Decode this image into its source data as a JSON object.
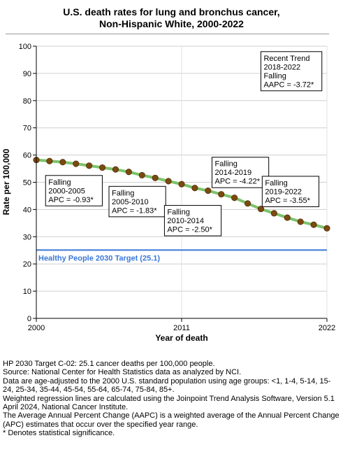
{
  "chart_data": {
    "type": "line",
    "title_lines": [
      "U.S. death rates for lung and bronchus cancer,",
      "Non-Hispanic White,  2000-2022"
    ],
    "xlabel": "Year of death",
    "ylabel": "Rate per 100,000",
    "xlim": [
      2000,
      2022
    ],
    "ylim": [
      0,
      100
    ],
    "x_ticks": [
      "2000",
      "2011",
      "2022"
    ],
    "y_ticks": [
      "0",
      "10",
      "20",
      "30",
      "40",
      "50",
      "60",
      "70",
      "80",
      "90",
      "100"
    ],
    "grid": true,
    "series": [
      {
        "x": [
          2000,
          2001,
          2002,
          2003,
          2004,
          2005,
          2006,
          2007,
          2008,
          2009,
          2010,
          2011,
          2012,
          2013,
          2014,
          2015,
          2016,
          2017,
          2018,
          2019,
          2020,
          2021,
          2022
        ],
        "y": [
          58.2,
          57.8,
          57.4,
          56.8,
          56.1,
          55.4,
          54.7,
          53.8,
          52.6,
          51.6,
          50.4,
          49.3,
          47.9,
          46.9,
          45.6,
          44.3,
          42.2,
          40.2,
          38.6,
          37.0,
          35.5,
          34.4,
          33.1
        ],
        "fit_color": "#7dc36b",
        "point_color": "#7b4a10"
      }
    ],
    "target": {
      "value": 25.1,
      "label": "Healthy People 2030 Target (25.1)",
      "color": "#3a78d8"
    },
    "annotations": [
      {
        "lines": [
          "Falling",
          "2000-2005",
          "APC = -0.93*"
        ],
        "at": [
          2000.7,
          52.5
        ]
      },
      {
        "lines": [
          "Falling",
          "2005-2010",
          "APC = -1.83*"
        ],
        "at": [
          2005.5,
          48.5
        ]
      },
      {
        "lines": [
          "Falling",
          "2010-2014",
          "APC = -2.50*"
        ],
        "at": [
          2009.7,
          41.5
        ]
      },
      {
        "lines": [
          "Falling",
          "2014-2019",
          "APC = -4.22*"
        ],
        "at": [
          2013.3,
          59.2
        ]
      },
      {
        "lines": [
          "Falling",
          "2019-2022",
          "APC = -3.55*"
        ],
        "at": [
          2017.1,
          52.2
        ]
      },
      {
        "lines": [
          "Recent Trend",
          "2018-2022",
          "Falling",
          "AAPC = -3.72*"
        ],
        "at": [
          2017.0,
          98.0
        ]
      }
    ]
  },
  "footnotes": [
    "HP 2030 Target C-02: 25.1 cancer deaths per 100,000 people.",
    "Source: National Center for Health Statistics data as analyzed by NCI.",
    "Data are age-adjusted to the 2000 U.S. standard population using age groups: <1, 1-4, 5-14, 15-24, 25-34, 35-44, 45-54, 55-64, 65-74, 75-84, 85+.",
    "Weighted regression lines are calculated using the Joinpoint Trend Analysis Software, Version 5.1 April 2024, National Cancer Institute.",
    "The Average Annual Percent Change (AAPC) is a weighted average of the Annual Percent Change (APC) estimates that occur over the specified year range.",
    "* Denotes statistical significance."
  ]
}
